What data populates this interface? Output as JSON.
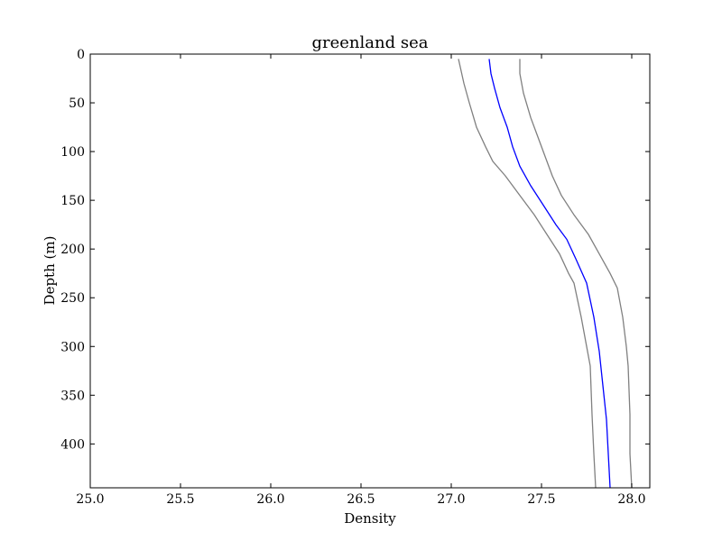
{
  "chart_data": {
    "type": "line",
    "title": "greenland sea",
    "xlabel": "Density",
    "ylabel": "Depth (m)",
    "xlim": [
      25.0,
      28.1
    ],
    "ylim": [
      0,
      445
    ],
    "y_inverted": true,
    "grid": false,
    "legend": "none",
    "x_ticks": [
      "25.0",
      "25.5",
      "26.0",
      "26.5",
      "27.0",
      "27.5",
      "28.0"
    ],
    "y_ticks": [
      "0",
      "50",
      "100",
      "150",
      "200",
      "250",
      "300",
      "350",
      "400"
    ],
    "series": [
      {
        "color": "#808080",
        "points": [
          [
            27.04,
            5
          ],
          [
            27.07,
            30
          ],
          [
            27.1,
            50
          ],
          [
            27.14,
            75
          ],
          [
            27.19,
            95
          ],
          [
            27.23,
            110
          ],
          [
            27.3,
            125
          ],
          [
            27.38,
            145
          ],
          [
            27.46,
            165
          ],
          [
            27.53,
            185
          ],
          [
            27.6,
            205
          ],
          [
            27.65,
            225
          ],
          [
            27.68,
            235
          ],
          [
            27.72,
            270
          ],
          [
            27.75,
            300
          ],
          [
            27.77,
            320
          ],
          [
            27.78,
            370
          ],
          [
            27.79,
            410
          ],
          [
            27.8,
            445
          ]
        ]
      },
      {
        "color": "#0000ff",
        "points": [
          [
            27.21,
            5
          ],
          [
            27.22,
            20
          ],
          [
            27.24,
            35
          ],
          [
            27.27,
            55
          ],
          [
            27.31,
            75
          ],
          [
            27.34,
            95
          ],
          [
            27.38,
            115
          ],
          [
            27.44,
            135
          ],
          [
            27.51,
            155
          ],
          [
            27.58,
            175
          ],
          [
            27.64,
            190
          ],
          [
            27.69,
            210
          ],
          [
            27.75,
            235
          ],
          [
            27.79,
            270
          ],
          [
            27.82,
            305
          ],
          [
            27.84,
            340
          ],
          [
            27.86,
            375
          ],
          [
            27.87,
            410
          ],
          [
            27.88,
            445
          ]
        ]
      },
      {
        "color": "#808080",
        "points": [
          [
            27.38,
            5
          ],
          [
            27.38,
            20
          ],
          [
            27.4,
            40
          ],
          [
            27.44,
            65
          ],
          [
            27.48,
            85
          ],
          [
            27.51,
            100
          ],
          [
            27.56,
            125
          ],
          [
            27.61,
            145
          ],
          [
            27.68,
            165
          ],
          [
            27.76,
            185
          ],
          [
            27.82,
            205
          ],
          [
            27.88,
            225
          ],
          [
            27.92,
            240
          ],
          [
            27.95,
            270
          ],
          [
            27.97,
            300
          ],
          [
            27.98,
            320
          ],
          [
            27.99,
            370
          ],
          [
            27.99,
            410
          ],
          [
            28.0,
            445
          ]
        ]
      }
    ]
  }
}
